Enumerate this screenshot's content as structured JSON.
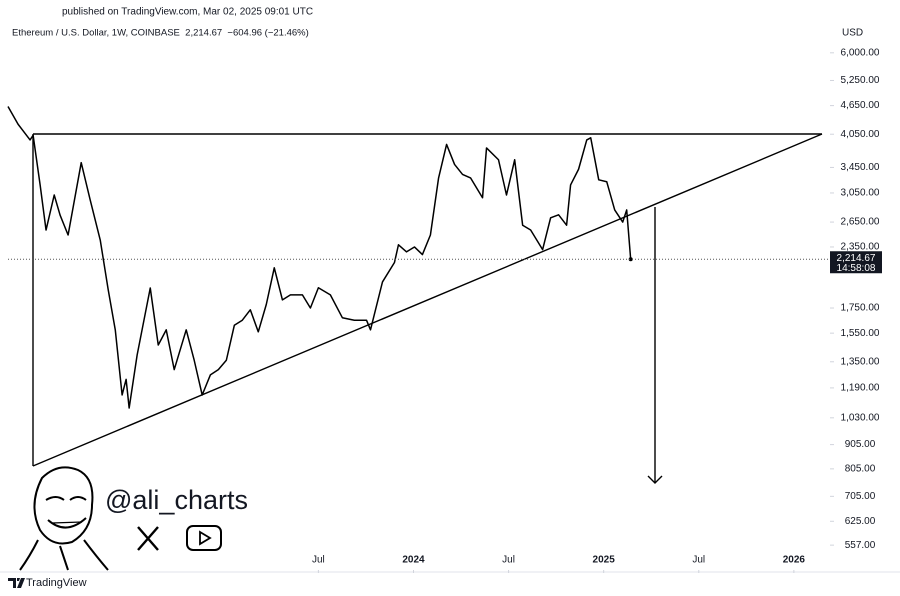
{
  "chart_data": {
    "type": "line",
    "published": "published on TradingView.com, Mar 02, 2025 09:01 UTC",
    "title": "Ethereum / U.S. Dollar, 1W, COINBASE  2,214.67  −604.96 (−21.46%)",
    "currency": "USD",
    "watermark": "@ali_charts",
    "brand": "TradingView",
    "color": "#000000",
    "log_scale": true,
    "grid": false,
    "x": [
      2021.868,
      2021.921,
      2021.984,
      2022.0,
      2022.037,
      2022.068,
      2022.111,
      2022.142,
      2022.184,
      2022.253,
      2022.3,
      2022.353,
      2022.395,
      2022.432,
      2022.468,
      2022.489,
      2022.505,
      2022.547,
      2022.616,
      2022.658,
      2022.7,
      2022.742,
      2022.805,
      2022.847,
      2022.889,
      2022.932,
      2022.974,
      2023.016,
      2023.058,
      2023.1,
      2023.142,
      2023.184,
      2023.226,
      2023.268,
      2023.311,
      2023.353,
      2023.416,
      2023.458,
      2023.5,
      2023.563,
      2023.626,
      2023.689,
      2023.753,
      2023.774,
      2023.837,
      2023.9,
      2023.921,
      2023.963,
      2024.005,
      2024.047,
      2024.089,
      2024.132,
      2024.174,
      2024.216,
      2024.258,
      2024.3,
      2024.363,
      2024.384,
      2024.447,
      2024.489,
      2024.532,
      2024.574,
      2024.616,
      2024.679,
      2024.721,
      2024.763,
      2024.805,
      2024.826,
      2024.868,
      2024.911,
      2024.932,
      2024.974,
      2025.016,
      2025.058,
      2025.1,
      2025.121,
      2025.142
    ],
    "values": [
      4630,
      4250,
      3940,
      4030,
      3170,
      2550,
      3020,
      2740,
      2490,
      3530,
      2950,
      2430,
      1910,
      1575,
      1150,
      1240,
      1080,
      1395,
      1928,
      1464,
      1575,
      1300,
      1575,
      1360,
      1150,
      1267,
      1300,
      1360,
      1610,
      1650,
      1735,
      1560,
      1780,
      2125,
      1820,
      1865,
      1865,
      1750,
      1930,
      1865,
      1670,
      1650,
      1650,
      1575,
      1985,
      2180,
      2375,
      2295,
      2350,
      2265,
      2490,
      3280,
      3855,
      3500,
      3335,
      3280,
      2980,
      3790,
      3580,
      3020,
      3580,
      2610,
      2550,
      2320,
      2705,
      2745,
      2610,
      3170,
      3420,
      3940,
      3980,
      3250,
      3220,
      2810,
      2650,
      2810,
      2214.67
    ],
    "last_price": {
      "value": 2214.67,
      "label": "2,214.67"
    },
    "countdown": "14:58:08",
    "xlim": [
      2021.868,
      2026.19
    ],
    "xticks": [
      {
        "value": 2023.5,
        "label": "Jul"
      },
      2024,
      {
        "value": 2024.5,
        "label": "Jul"
      },
      2025,
      {
        "value": 2025.5,
        "label": "Jul"
      },
      2026
    ],
    "ylim": [
      494,
      7030
    ],
    "yticks": [
      {
        "value": 6000,
        "label": "6,000.00"
      },
      {
        "value": 5250,
        "label": "5,250.00"
      },
      {
        "value": 4650,
        "label": "4,650.00"
      },
      {
        "value": 4050,
        "label": "4,050.00"
      },
      {
        "value": 3450,
        "label": "3,450.00"
      },
      {
        "value": 3050,
        "label": "3,050.00"
      },
      {
        "value": 2650,
        "label": "2,650.00"
      },
      {
        "value": 2350,
        "label": "2,350.00"
      },
      {
        "value": 1750,
        "label": "1,750.00"
      },
      {
        "value": 1550,
        "label": "1,550.00"
      },
      {
        "value": 1350,
        "label": "1,350.00"
      },
      {
        "value": 1190,
        "label": "1,190.00"
      },
      {
        "value": 1030,
        "label": "1,030.00"
      },
      {
        "value": 905,
        "label": "905.00"
      },
      {
        "value": 805,
        "label": "805.00"
      },
      {
        "value": 705,
        "label": "705.00"
      },
      {
        "value": 625,
        "label": "625.00"
      },
      {
        "value": 557,
        "label": "557.00"
      }
    ]
  }
}
